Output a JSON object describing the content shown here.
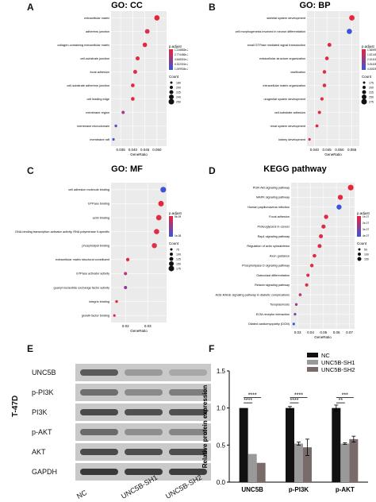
{
  "panels": {
    "A": "A",
    "B": "B",
    "C": "C",
    "D": "D",
    "E": "E",
    "F": "F"
  },
  "dot_plots": [
    {
      "id": "A",
      "title": "GO: CC",
      "xlabel": "GeneRatio",
      "legend_padj_title": "p.adjust",
      "legend_padj_values": [
        "1.216853e-20",
        "2.774456e-21",
        "4.548301e-21",
        "6.322301e-21",
        "1.009934e-20"
      ],
      "legend_count_title": "Count",
      "legend_count_values": [
        "180",
        "200",
        "225",
        "240",
        "250"
      ],
      "xticks": [
        "0.035",
        "0.040",
        "0.045",
        "0.050"
      ],
      "xlim": [
        0.031,
        0.054
      ],
      "terms": [
        "extracellular matrix",
        "adherens junction",
        "collagen-containing extracellular matrix",
        "cell-substrate junction",
        "focal adhesion",
        "cell-substrate adherens junction",
        "cell leading edge",
        "membrane region",
        "membrane microdomain",
        "membrane raft"
      ],
      "ratios": [
        0.05,
        0.046,
        0.045,
        0.042,
        0.041,
        0.04,
        0.04,
        0.036,
        0.033,
        0.032
      ],
      "colors": [
        "#e8243b",
        "#d93050",
        "#e12a44",
        "#e4283f",
        "#e02b45",
        "#e12a44",
        "#e12a44",
        "#a23a8a",
        "#6a49b5",
        "#3a55d8"
      ]
    },
    {
      "id": "B",
      "title": "GO: BP",
      "xlabel": "GeneRatio",
      "legend_padj_title": "p.adjust",
      "legend_padj_values": [
        "1.365993e-28",
        "1.521455e-28",
        "2.104166e-28",
        "3.154285e-28",
        "4.208289e-28"
      ],
      "legend_count_title": "Count",
      "legend_count_values": [
        "175",
        "200",
        "225",
        "250",
        "275"
      ],
      "xticks": [
        "0.040",
        "0.045",
        "0.050",
        "0.055"
      ],
      "xlim": [
        0.037,
        0.058
      ],
      "terms": [
        "skeletal system development",
        "cell morphogenesis involved in neuron differentiation",
        "small GTPase mediated signal transduction",
        "extracellular structure organization",
        "ossification",
        "extracellular matrix organization",
        "urogenital system development",
        "cell-substrate adhesion",
        "renal system development",
        "kidney development"
      ],
      "ratios": [
        0.055,
        0.054,
        0.046,
        0.045,
        0.044,
        0.044,
        0.043,
        0.042,
        0.041,
        0.038
      ],
      "colors": [
        "#e8243b",
        "#3a55d8",
        "#e12a44",
        "#e02b45",
        "#e12a44",
        "#e12a44",
        "#e12a44",
        "#e12a44",
        "#e12a44",
        "#e12a44"
      ]
    },
    {
      "id": "C",
      "title": "GO: MF",
      "xlabel": "GeneRatio",
      "legend_padj_title": "p.adjust",
      "legend_padj_values": [
        "5e-09",
        "1e-08"
      ],
      "legend_count_title": "Count",
      "legend_count_values": [
        "75",
        "100",
        "125",
        "150",
        "175"
      ],
      "xticks": [
        "0.02",
        "0.03"
      ],
      "xlim": [
        0.0135,
        0.0385
      ],
      "terms": [
        "cell adhesion molecule binding",
        "GTPase binding",
        "actin binding",
        "DNA-binding transcription activator activity, RNA polymerase II-specific",
        "phospholipid binding",
        "extracellular matrix structural constituent",
        "GTPase activator activity",
        "guanyl-nucleotide exchange factor activity",
        "integrin binding",
        "growth factor binding"
      ],
      "ratios": [
        0.037,
        0.036,
        0.035,
        0.034,
        0.033,
        0.021,
        0.02,
        0.02,
        0.016,
        0.015
      ],
      "colors": [
        "#3a55d8",
        "#e8243b",
        "#e12a44",
        "#e02b45",
        "#d8324c",
        "#e12a44",
        "#b93878",
        "#8e3e98",
        "#e12a44",
        "#e02b45"
      ]
    },
    {
      "id": "D",
      "title": "KEGG pathway",
      "xlabel": "GeneRatio",
      "legend_padj_title": "p.adjust",
      "legend_padj_values": [
        "1e-07",
        "2e-07",
        "3e-07",
        "4e-07"
      ],
      "legend_count_title": "Count",
      "legend_count_values": [
        "50",
        "100",
        "150"
      ],
      "xticks": [
        "0.03",
        "0.04",
        "0.05",
        "0.06",
        "0.07"
      ],
      "xlim": [
        0.025,
        0.074
      ],
      "terms": [
        "PI3K-Akt signaling pathway",
        "MAPK signaling pathway",
        "Human papillomavirus infection",
        "Focal adhesion",
        "Proteoglycans in cancer",
        "Rap1 signaling pathway",
        "Regulation of actin cytoskeleton",
        "Axon guidance",
        "Phospholipase D signaling pathway",
        "Osteoclast differentiation",
        "Relaxin signaling pathway",
        "AGE-RAGE signaling pathway in diabetic complications",
        "Toxoplasmosis",
        "ECM-receptor interaction",
        "Dilated cardiomyopathy (DCM)"
      ],
      "ratios": [
        0.071,
        0.063,
        0.062,
        0.052,
        0.05,
        0.048,
        0.047,
        0.043,
        0.041,
        0.038,
        0.037,
        0.032,
        0.029,
        0.028,
        0.027
      ],
      "colors": [
        "#e8243b",
        "#e12a44",
        "#3a55d8",
        "#e12a44",
        "#e02b45",
        "#e12a44",
        "#e12a44",
        "#e12a44",
        "#e12a44",
        "#e12a44",
        "#e12a44",
        "#c03570",
        "#9a3c8d",
        "#7a44a6",
        "#3a55d8"
      ]
    }
  ],
  "western_blot": {
    "cell_line": "T-47D",
    "proteins": [
      "UNC5B",
      "p-PI3K",
      "PI3K",
      "p-AKT",
      "AKT",
      "GAPDH"
    ],
    "lanes": [
      "NC",
      "UNC5B-SH1",
      "UNC5B-SH2"
    ]
  },
  "chart_data": {
    "type": "bar",
    "ylabel": "Relative protein expression",
    "ylim": [
      0,
      1.5
    ],
    "yticks": [
      "0.0",
      "0.5",
      "1.0",
      "1.5"
    ],
    "categories": [
      "UNC5B",
      "p-PI3K",
      "p-AKT"
    ],
    "series": [
      {
        "name": "NC",
        "values": [
          1.0,
          1.0,
          1.0
        ],
        "color": "#111111"
      },
      {
        "name": "UNC5B-SH1",
        "values": [
          0.38,
          0.52,
          0.52
        ],
        "color": "#999999"
      },
      {
        "name": "UNC5B-SH2",
        "values": [
          0.26,
          0.47,
          0.58
        ],
        "color": "#7a6b6b"
      }
    ],
    "errors": [
      [
        0,
        0.02,
        0.04
      ],
      [
        0,
        0.02,
        0.01
      ],
      [
        0,
        0.11,
        0.04
      ]
    ],
    "significance": [
      {
        "upper": "****",
        "lower": "****"
      },
      {
        "upper": "****",
        "lower": "****"
      },
      {
        "upper": "***",
        "lower": "**"
      }
    ],
    "legend_position": "top-right"
  }
}
